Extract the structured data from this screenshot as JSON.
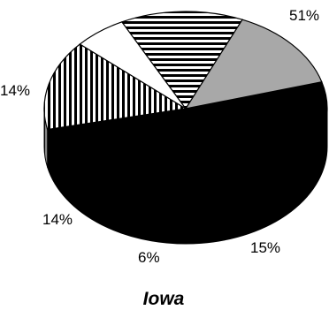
{
  "chart_data": {
    "type": "pie",
    "title": "Iowa",
    "values": [
      51,
      15,
      6,
      14,
      14
    ],
    "labels": [
      "51%",
      "15%",
      "6%",
      "14%",
      "14%"
    ],
    "fills": [
      "black",
      "vertical-stripes",
      "white",
      "horizontal-stripes",
      "gray"
    ],
    "colors": {
      "black": "#000000",
      "gray": "#a8a8a8",
      "white": "#ffffff",
      "stripe": "#000000"
    }
  }
}
